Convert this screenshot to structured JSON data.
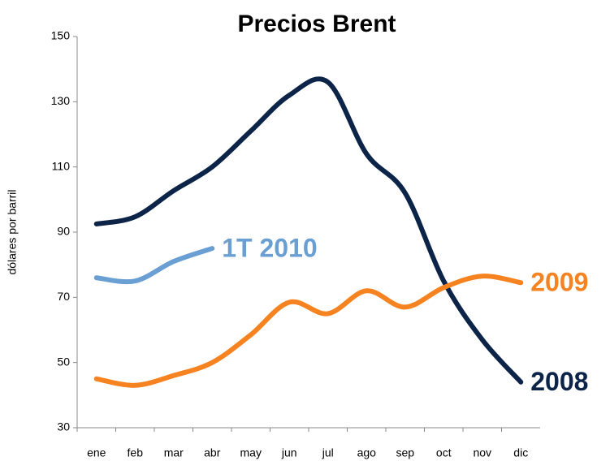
{
  "chart_data": {
    "type": "line",
    "title": "Precios Brent",
    "y_label": "dólares por barril",
    "categories": [
      "ene",
      "feb",
      "mar",
      "abr",
      "may",
      "jun",
      "jul",
      "ago",
      "sep",
      "oct",
      "nov",
      "dic"
    ],
    "series": [
      {
        "name": "2008",
        "color": "#0d2449",
        "values": [
          92.5,
          94.7,
          102.7,
          110,
          121,
          132,
          136,
          114,
          102,
          75,
          57,
          44
        ]
      },
      {
        "name": "2009",
        "color": "#f68220",
        "values": [
          45,
          43,
          46,
          50,
          58.5,
          68.5,
          65,
          72,
          67,
          73,
          76.5,
          74.5
        ]
      },
      {
        "name": "1T 2010",
        "color": "#6a9fd4",
        "values": [
          76,
          75,
          81,
          85,
          null,
          null,
          null,
          null,
          null,
          null,
          null,
          null
        ]
      }
    ],
    "ylim": [
      30,
      150
    ],
    "yticks": [
      30,
      50,
      70,
      90,
      110,
      130,
      150
    ]
  }
}
